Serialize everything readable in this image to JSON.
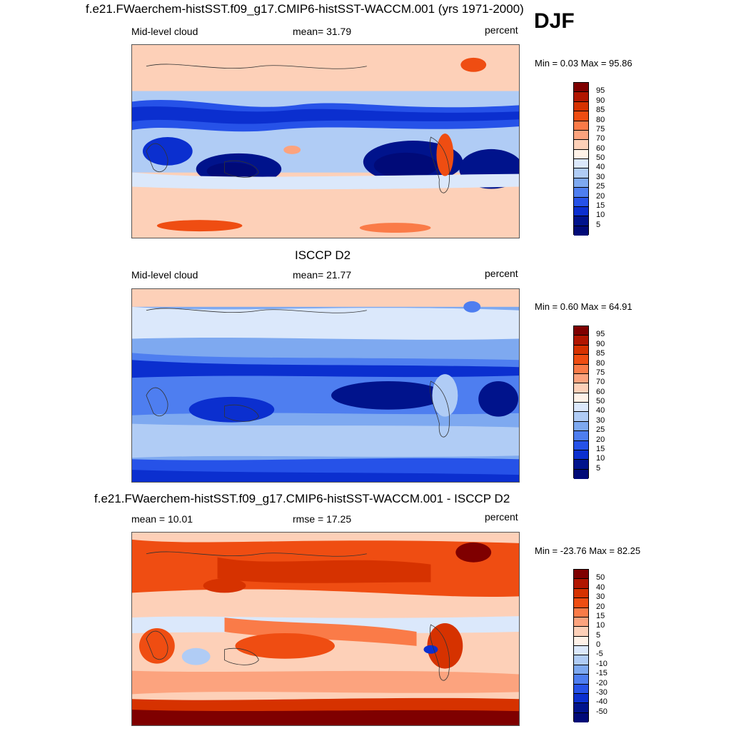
{
  "season": "DJF",
  "panels": [
    {
      "title": "f.e21.FWaerchem-histSST.f09_g17.CMIP6-histSST-WACCM.001 (yrs 1971-2000)",
      "left_label": "Mid-level cloud",
      "center_label": "mean=  31.79",
      "right_label": "percent",
      "minmax": "Min =   0.03 Max =  95.86",
      "colorbar": [
        "95",
        "90",
        "85",
        "80",
        "75",
        "70",
        "60",
        "50",
        "40",
        "30",
        "25",
        "20",
        "15",
        "10",
        "5"
      ]
    },
    {
      "title": "ISCCP D2",
      "left_label": "Mid-level cloud",
      "center_label": "mean=  21.77",
      "right_label": "percent",
      "minmax": "Min =   0.60 Max =  64.91",
      "colorbar": [
        "95",
        "90",
        "85",
        "80",
        "75",
        "70",
        "60",
        "50",
        "40",
        "30",
        "25",
        "20",
        "15",
        "10",
        "5"
      ]
    },
    {
      "title": "f.e21.FWaerchem-histSST.f09_g17.CMIP6-histSST-WACCM.001 - ISCCP D2",
      "left_label": "mean =  10.01",
      "center_label": "rmse =  17.25",
      "right_label": "percent",
      "minmax": "Min = -23.76 Max =  82.25",
      "colorbar": [
        "50",
        "40",
        "30",
        "20",
        "15",
        "10",
        "5",
        "0",
        "-5",
        "-10",
        "-15",
        "-20",
        "-30",
        "-40",
        "-50"
      ]
    }
  ],
  "colors": [
    "#7f0000",
    "#b11600",
    "#d63200",
    "#ef4d12",
    "#fa7b48",
    "#fca37e",
    "#fdd0b8",
    "#fff2e8",
    "#dbe8fb",
    "#b0ccf5",
    "#7ea9f0",
    "#4e7ef0",
    "#2652e8",
    "#0b2fcf",
    "#00138c",
    "#000a78"
  ]
}
